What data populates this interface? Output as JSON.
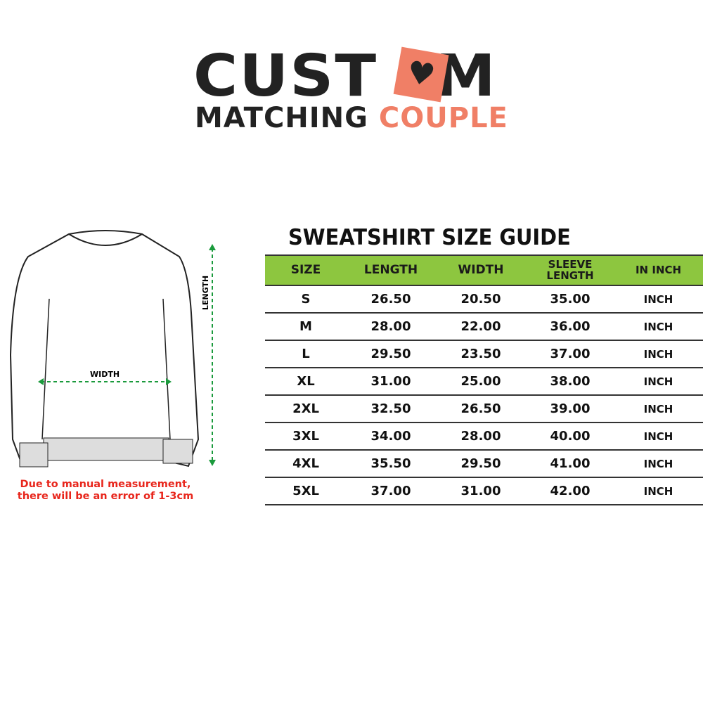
{
  "logo": {
    "line1_a": "CUST",
    "line1_b": "M",
    "line2_a": "MATCHING",
    "line2_b": "COUPLE",
    "accent": "#f07f66"
  },
  "title": "SWEATSHIRT SIZE GUIDE",
  "header_color": "#8dc63f",
  "columns": [
    "SIZE",
    "LENGTH",
    "WIDTH",
    "SLEEVE LENGTH",
    "IN INCH"
  ],
  "rows": [
    [
      "S",
      "26.50",
      "20.50",
      "35.00",
      "INCH"
    ],
    [
      "M",
      "28.00",
      "22.00",
      "36.00",
      "INCH"
    ],
    [
      "L",
      "29.50",
      "23.50",
      "37.00",
      "INCH"
    ],
    [
      "XL",
      "31.00",
      "25.00",
      "38.00",
      "INCH"
    ],
    [
      "2XL",
      "32.50",
      "26.50",
      "39.00",
      "INCH"
    ],
    [
      "3XL",
      "34.00",
      "28.00",
      "40.00",
      "INCH"
    ],
    [
      "4XL",
      "35.50",
      "29.50",
      "41.00",
      "INCH"
    ],
    [
      "5XL",
      "37.00",
      "31.00",
      "42.00",
      "INCH"
    ]
  ],
  "diagram": {
    "width_label": "WIDTH",
    "length_label": "LENGTH"
  },
  "note": "Due to manual measurement, there will be an error of 1-3cm"
}
